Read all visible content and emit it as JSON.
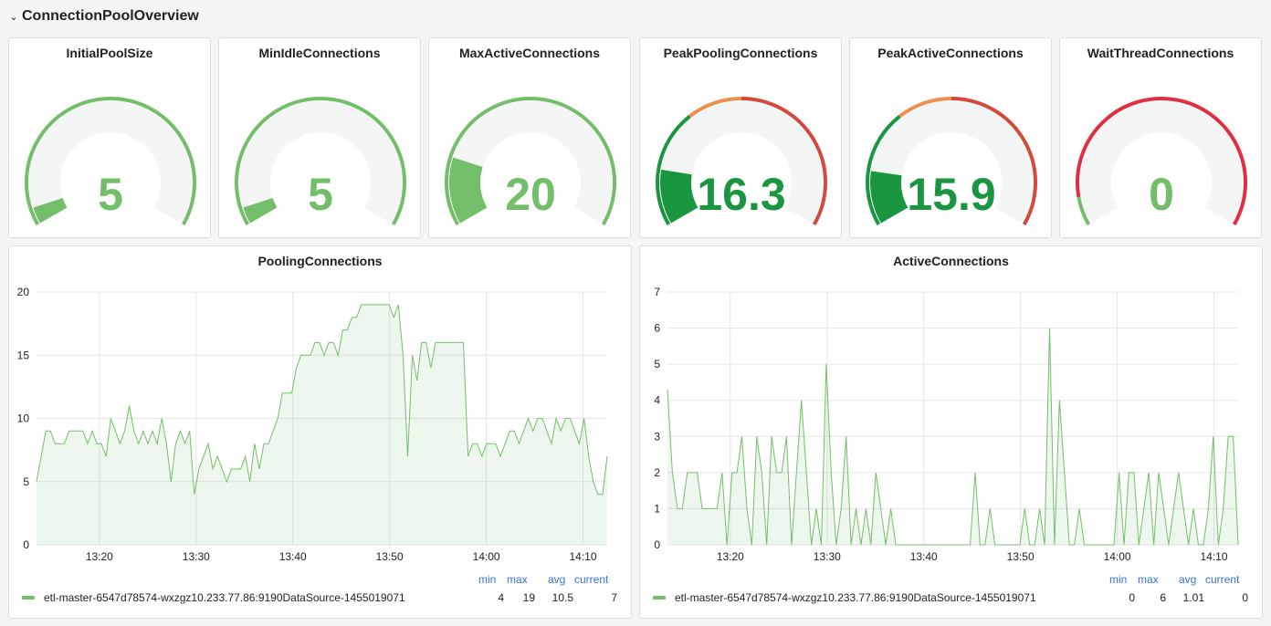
{
  "row": {
    "title": "ConnectionPoolOverview",
    "chevron": "chevron-down-icon"
  },
  "gauges": [
    {
      "title": "InitialPoolSize",
      "value": "5",
      "num": 5,
      "max": 100,
      "color": "#73bf69",
      "thresholds": "single"
    },
    {
      "title": "MinIdleConnections",
      "value": "5",
      "num": 5,
      "max": 100,
      "color": "#73bf69",
      "thresholds": "single"
    },
    {
      "title": "MaxActiveConnections",
      "value": "20",
      "num": 20,
      "max": 100,
      "color": "#73bf69",
      "thresholds": "single"
    },
    {
      "title": "PeakPoolingConnections",
      "value": "16.3",
      "num": 16.3,
      "max": 100,
      "color": "#1a9641",
      "thresholds": "multi"
    },
    {
      "title": "PeakActiveConnections",
      "value": "15.9",
      "num": 15.9,
      "max": 100,
      "color": "#1a9641",
      "thresholds": "multi"
    },
    {
      "title": "WaitThreadConnections",
      "value": "0",
      "num": 0,
      "max": 100,
      "color": "#73bf69",
      "thresholds": "red"
    }
  ],
  "colors": {
    "green": "#73bf69",
    "darkgreen": "#1a9641",
    "orange": "#ef8f4d",
    "red": "#d44a3a",
    "crimson": "#e02f44",
    "track": "#f4f5f5",
    "legend_header": "#3871dc"
  },
  "charts": [
    {
      "title": "PoolingConnections",
      "legend": {
        "headers": [
          "min",
          "max",
          "avg",
          "current"
        ],
        "series": "etl-master-6547d78574-wxzgz10.233.77.86:9190DataSource-1455019071",
        "min": "4",
        "max": "19",
        "avg": "10.5",
        "current": "7"
      }
    },
    {
      "title": "ActiveConnections",
      "legend": {
        "headers": [
          "min",
          "max",
          "avg",
          "current"
        ],
        "series": "etl-master-6547d78574-wxzgz10.233.77.86:9190DataSource-1455019071",
        "min": "0",
        "max": "6",
        "avg": "1.01",
        "current": "0"
      }
    }
  ],
  "chart_data": [
    {
      "type": "area",
      "title": "PoolingConnections",
      "x_ticks": [
        "13:20",
        "13:30",
        "13:40",
        "13:50",
        "14:00",
        "14:10"
      ],
      "y_ticks": [
        "0",
        "5",
        "10",
        "15",
        "20"
      ],
      "ylim": [
        0,
        20
      ],
      "x_start_minute": 13.5,
      "x_end_minute": 72.5,
      "series": [
        {
          "name": "etl-master-6547d78574-wxzgz10.233.77.86:9190DataSource-1455019071",
          "values": [
            5,
            7,
            9,
            9,
            8,
            8,
            8,
            9,
            9,
            9,
            9,
            8,
            9,
            8,
            8,
            7,
            10,
            9,
            8,
            9,
            11,
            9,
            8,
            9,
            8,
            9,
            8,
            10,
            8,
            5,
            8,
            9,
            8,
            9,
            4,
            6,
            7,
            8,
            6,
            7,
            6,
            5,
            6,
            6,
            6,
            7,
            5,
            8,
            6,
            8,
            8,
            9,
            10,
            12,
            12,
            12,
            14,
            15,
            15,
            15,
            16,
            16,
            15,
            16,
            16,
            15,
            17,
            17,
            18,
            18,
            19,
            19,
            19,
            19,
            19,
            19,
            19,
            18,
            19,
            15,
            7,
            15,
            13,
            16,
            16,
            14,
            16,
            16,
            16,
            16,
            16,
            16,
            16,
            7,
            8,
            8,
            7,
            8,
            8,
            8,
            7,
            8,
            9,
            9,
            8,
            9,
            10,
            9,
            10,
            10,
            9,
            8,
            10,
            9,
            10,
            10,
            9,
            8,
            10,
            7,
            5,
            4,
            4,
            7
          ]
        }
      ]
    },
    {
      "type": "area",
      "title": "ActiveConnections",
      "x_ticks": [
        "13:20",
        "13:30",
        "13:40",
        "13:50",
        "14:00",
        "14:10"
      ],
      "y_ticks": [
        "0",
        "1",
        "2",
        "3",
        "4",
        "5",
        "6",
        "7"
      ],
      "ylim": [
        0,
        7
      ],
      "x_start_minute": 13.5,
      "x_end_minute": 72.5,
      "series": [
        {
          "name": "etl-master-6547d78574-wxzgz10.233.77.86:9190DataSource-1455019071",
          "values": [
            4.3,
            2,
            1,
            1,
            2,
            2,
            2,
            1,
            1,
            1,
            1,
            2,
            0,
            2,
            2,
            3,
            1,
            0,
            3,
            2,
            0,
            3,
            2,
            2,
            3,
            0,
            2,
            4,
            2,
            0,
            1,
            0,
            5,
            2,
            0,
            1,
            3,
            0,
            1,
            0,
            1,
            0,
            2,
            1,
            0,
            1,
            0,
            0,
            0,
            0,
            0,
            0,
            0,
            0,
            0,
            0,
            0,
            0,
            0,
            0,
            0,
            0,
            2,
            0,
            0,
            1,
            0,
            0,
            0,
            0,
            0,
            0,
            1,
            0,
            0,
            1,
            0,
            6,
            0,
            4,
            2,
            0,
            0,
            1,
            0,
            0,
            0,
            0,
            0,
            0,
            0,
            2,
            0,
            2,
            2,
            0,
            1,
            2,
            0,
            2,
            1,
            0,
            1,
            2,
            1,
            0,
            1,
            0,
            0,
            1,
            3,
            0,
            1,
            3,
            3,
            0
          ]
        }
      ]
    }
  ]
}
